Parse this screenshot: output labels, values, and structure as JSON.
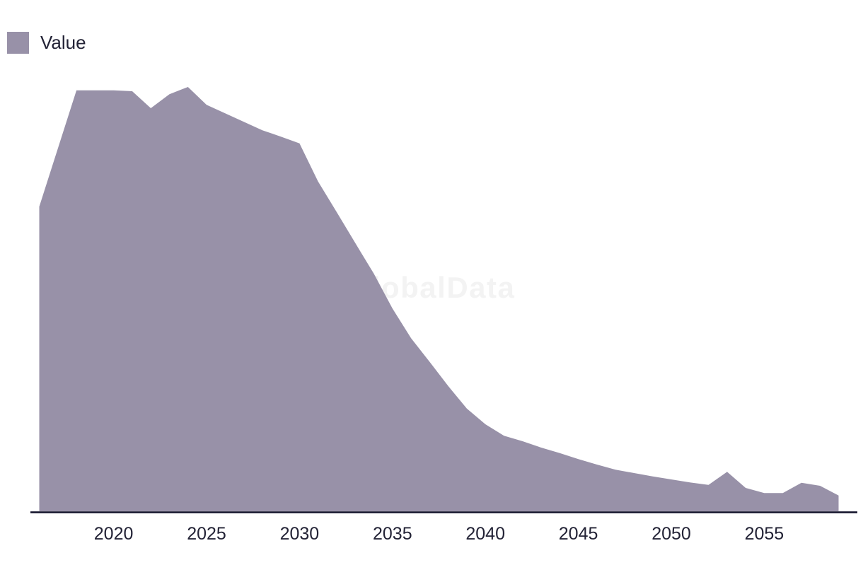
{
  "legend": {
    "label": "Value"
  },
  "watermark": "GlobalData",
  "colors": {
    "area": "#9891a8",
    "axis_line": "#15152d",
    "label_text": "#232336",
    "watermark_text": "#f3f3f3",
    "background": "#ffffff"
  },
  "chart_data": {
    "type": "area",
    "title": "",
    "xlabel": "",
    "ylabel": "",
    "legend_entries": [
      "Value"
    ],
    "legend_position": "top-left",
    "grid": false,
    "y_axis_visible": false,
    "x_axis_line": true,
    "xlim": [
      2016,
      2059
    ],
    "ylim": [
      0,
      100
    ],
    "value_note": "relative index values estimated from pixel heights; peak year 2024 = 100; no y-axis labels shown in chart",
    "x": [
      2016,
      2017,
      2018,
      2019,
      2020,
      2021,
      2022,
      2023,
      2024,
      2025,
      2026,
      2027,
      2028,
      2029,
      2030,
      2031,
      2032,
      2033,
      2034,
      2035,
      2036,
      2037,
      2038,
      2039,
      2040,
      2041,
      2042,
      2043,
      2044,
      2045,
      2046,
      2047,
      2048,
      2049,
      2050,
      2051,
      2052,
      2053,
      2054,
      2055,
      2056,
      2057,
      2058,
      2059
    ],
    "series": [
      {
        "name": "Value",
        "values": [
          71.8,
          85.5,
          99.2,
          99.2,
          99.2,
          99.0,
          95.0,
          98.3,
          100.0,
          95.8,
          93.8,
          91.8,
          89.8,
          88.3,
          86.7,
          77.7,
          70.5,
          63.2,
          56.0,
          47.8,
          40.8,
          35.2,
          29.5,
          24.2,
          20.5,
          17.8,
          16.5,
          15.0,
          13.7,
          12.3,
          11.0,
          9.8,
          9.0,
          8.2,
          7.5,
          6.8,
          6.2,
          9.3,
          5.5,
          4.3,
          4.3,
          6.7,
          6.0,
          3.7
        ]
      }
    ],
    "x_ticks": [
      2020,
      2025,
      2030,
      2035,
      2040,
      2045,
      2050,
      2055
    ],
    "x_tick_labels": [
      "2020",
      "2025",
      "2030",
      "2035",
      "2040",
      "2045",
      "2050",
      "2055"
    ]
  }
}
